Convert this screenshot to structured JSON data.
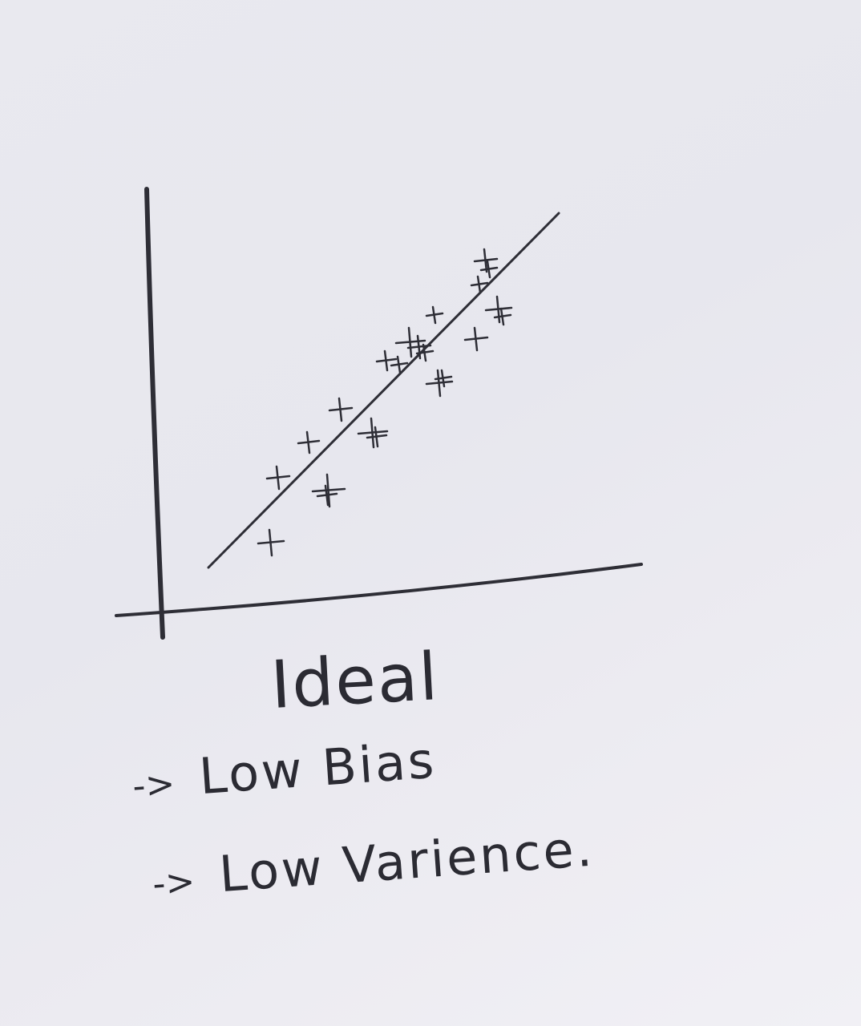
{
  "title": "Ideal",
  "bullets": [
    {
      "arrow": "->",
      "label": "Low Bias"
    },
    {
      "arrow": "->",
      "label": "Low Varience."
    }
  ],
  "chart_data": {
    "type": "scatter",
    "title": "",
    "xlabel": "",
    "ylabel": "",
    "markers": "plus",
    "fit_line": "straight line through the points",
    "points_count": 22
  },
  "colors": {
    "ink": "#2e2e36",
    "paper": "#e9e9ef"
  }
}
